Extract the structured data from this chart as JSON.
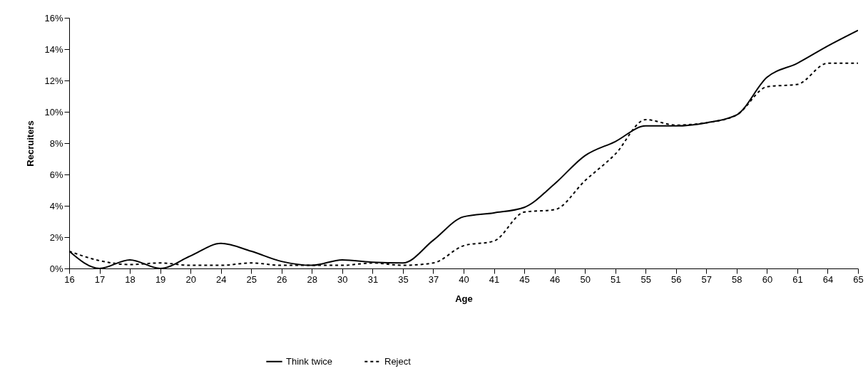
{
  "chart_data": {
    "type": "line",
    "xlabel": "Age",
    "ylabel": "Recruiters",
    "categories": [
      "16",
      "17",
      "18",
      "19",
      "20",
      "24",
      "25",
      "26",
      "28",
      "30",
      "31",
      "35",
      "37",
      "40",
      "41",
      "45",
      "46",
      "50",
      "51",
      "55",
      "56",
      "57",
      "58",
      "60",
      "61",
      "64",
      "65"
    ],
    "series": [
      {
        "name": "Think twice",
        "color": "#000000",
        "line_style": "solid",
        "values": [
          1.1,
          0,
          0.55,
          0,
          0.8,
          1.6,
          1.1,
          0.45,
          0.2,
          0.55,
          0.4,
          0.35,
          1.8,
          3.3,
          3.55,
          3.9,
          5.4,
          7.2,
          8.1,
          9.1,
          9.1,
          9.3,
          9.8,
          12.2,
          13.1,
          14.2,
          15.2
        ]
      },
      {
        "name": "Reject",
        "color": "#000000",
        "line_style": "dashed",
        "values": [
          1.1,
          0.5,
          0.25,
          0.35,
          0.2,
          0.2,
          0.35,
          0.2,
          0.2,
          0.2,
          0.35,
          0.2,
          0.35,
          1.45,
          1.75,
          3.6,
          3.75,
          5.6,
          7.3,
          9.5,
          9.15,
          9.3,
          9.8,
          11.6,
          11.75,
          13.1,
          13.1
        ]
      }
    ],
    "ylim": [
      0,
      16
    ],
    "yticks": [
      {
        "value": 0,
        "label": "0%"
      },
      {
        "value": 2,
        "label": "2%"
      },
      {
        "value": 4,
        "label": "4%"
      },
      {
        "value": 6,
        "label": "6%"
      },
      {
        "value": 8,
        "label": "8%"
      },
      {
        "value": 10,
        "label": "10%"
      },
      {
        "value": 12,
        "label": "12%"
      },
      {
        "value": 14,
        "label": "14%"
      },
      {
        "value": 16,
        "label": "16%"
      }
    ],
    "grid": false,
    "legend": "bottom",
    "marker": "none"
  }
}
